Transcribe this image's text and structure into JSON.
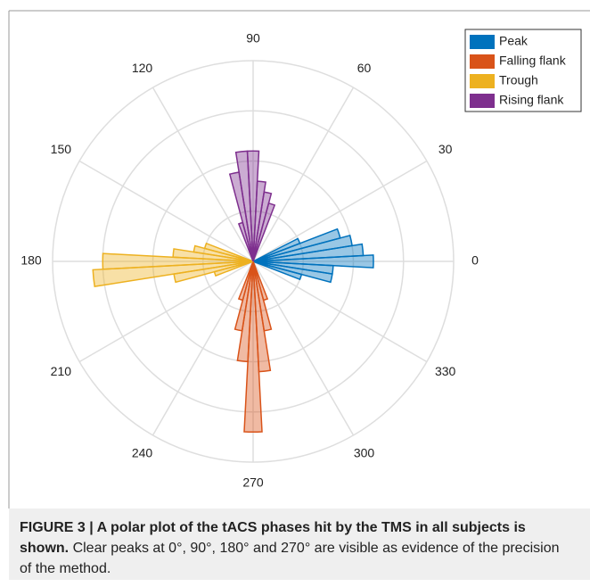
{
  "chart_data": {
    "type": "polar-histogram",
    "rlim": [
      0,
      20
    ],
    "rticks": [
      5,
      10,
      15,
      20
    ],
    "thetaticks": [
      0,
      30,
      60,
      90,
      120,
      150,
      180,
      210,
      240,
      270,
      300,
      330
    ],
    "legend": "top-right",
    "series": [
      {
        "name": "Peak",
        "color": "#0072BD",
        "bins": [
          -21,
          -15,
          -9,
          -3,
          3,
          9,
          15,
          21,
          27
        ],
        "values": [
          5,
          8,
          8,
          12,
          11,
          10,
          9,
          5
        ]
      },
      {
        "name": "Falling flank",
        "color": "#D95319",
        "bins": [
          249,
          255,
          261,
          267,
          273,
          279,
          285,
          291
        ],
        "values": [
          4,
          7,
          10,
          17,
          11,
          7,
          4
        ]
      },
      {
        "name": "Trough",
        "color": "#EDB120",
        "bins": [
          159,
          165,
          171,
          177,
          183,
          189,
          195,
          201
        ],
        "values": [
          5,
          6,
          8,
          15,
          16,
          8,
          4
        ]
      },
      {
        "name": "Rising flank",
        "color": "#7E2F8E",
        "bins": [
          69,
          75,
          81,
          87,
          93,
          99,
          105,
          111
        ],
        "values": [
          6,
          7,
          8,
          11,
          11,
          9,
          4
        ]
      }
    ]
  },
  "caption": {
    "bold": "FIGURE 3 | A polar plot of the tACS phases hit by the TMS in all subjects is shown.",
    "text": "Clear peaks at 0°, 90°, 180° and 270° are visible as evidence of the precision of the method."
  }
}
